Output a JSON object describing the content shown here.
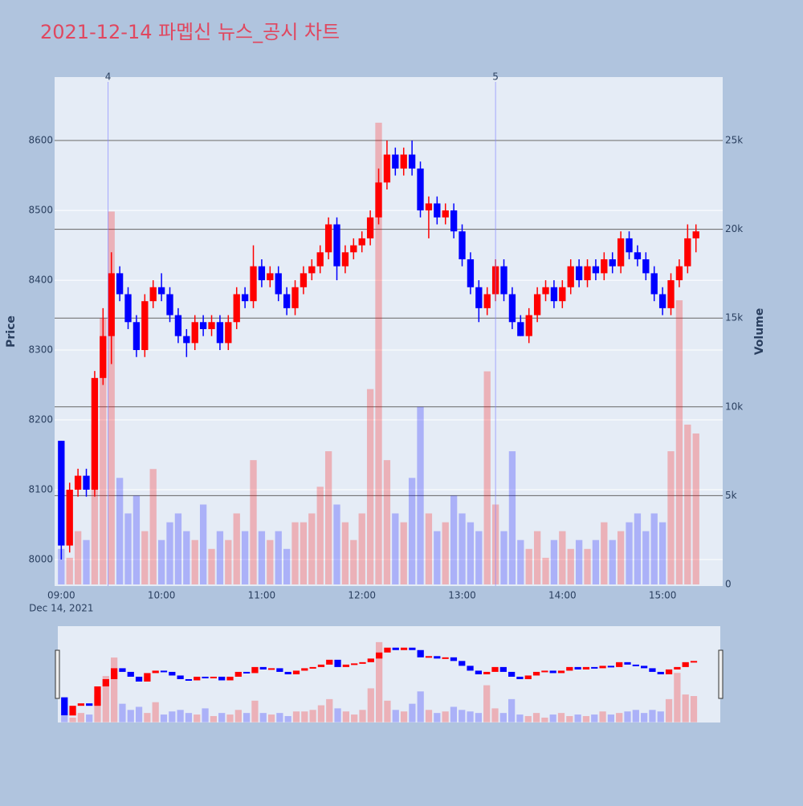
{
  "chart_data": {
    "type": "candlestick",
    "title": "2021-12-14 파멥신 뉴스_공시 차트",
    "x": [
      "09:00",
      "09:05",
      "09:10",
      "09:15",
      "09:20",
      "09:25",
      "09:30",
      "09:35",
      "09:40",
      "09:45",
      "09:50",
      "09:55",
      "10:00",
      "10:05",
      "10:10",
      "10:15",
      "10:20",
      "10:25",
      "10:30",
      "10:35",
      "10:40",
      "10:45",
      "10:50",
      "10:55",
      "11:00",
      "11:05",
      "11:10",
      "11:15",
      "11:20",
      "11:25",
      "11:30",
      "11:35",
      "11:40",
      "11:45",
      "11:50",
      "11:55",
      "12:00",
      "12:05",
      "12:10",
      "12:15",
      "12:20",
      "12:25",
      "12:30",
      "12:35",
      "12:40",
      "12:45",
      "12:50",
      "12:55",
      "13:00",
      "13:05",
      "13:10",
      "13:15",
      "13:20",
      "13:25",
      "13:30",
      "13:35",
      "13:40",
      "13:45",
      "13:50",
      "13:55",
      "14:00",
      "14:05",
      "14:10",
      "14:15",
      "14:20",
      "14:25",
      "14:30",
      "14:35",
      "14:40",
      "14:45",
      "14:50",
      "14:55",
      "15:00",
      "15:05",
      "15:10",
      "15:15",
      "15:20"
    ],
    "open": [
      8170,
      8020,
      8100,
      8120,
      8100,
      8260,
      8320,
      8410,
      8380,
      8340,
      8300,
      8370,
      8390,
      8380,
      8350,
      8320,
      8310,
      8340,
      8330,
      8340,
      8310,
      8340,
      8380,
      8370,
      8420,
      8400,
      8410,
      8380,
      8360,
      8390,
      8410,
      8420,
      8440,
      8480,
      8420,
      8440,
      8450,
      8460,
      8490,
      8540,
      8580,
      8560,
      8580,
      8560,
      8500,
      8510,
      8490,
      8500,
      8470,
      8430,
      8390,
      8360,
      8380,
      8420,
      8380,
      8340,
      8320,
      8350,
      8380,
      8390,
      8370,
      8390,
      8420,
      8400,
      8420,
      8410,
      8430,
      8420,
      8460,
      8440,
      8430,
      8410,
      8380,
      8360,
      8400,
      8420,
      8460
    ],
    "high": [
      8170,
      8110,
      8130,
      8130,
      8270,
      8360,
      8440,
      8420,
      8390,
      8350,
      8380,
      8400,
      8410,
      8390,
      8360,
      8330,
      8350,
      8350,
      8350,
      8350,
      8350,
      8390,
      8390,
      8450,
      8430,
      8420,
      8420,
      8390,
      8400,
      8420,
      8430,
      8450,
      8490,
      8490,
      8450,
      8460,
      8470,
      8500,
      8560,
      8600,
      8590,
      8590,
      8600,
      8570,
      8520,
      8520,
      8510,
      8510,
      8480,
      8440,
      8400,
      8390,
      8430,
      8430,
      8390,
      8350,
      8360,
      8390,
      8400,
      8400,
      8400,
      8430,
      8430,
      8430,
      8430,
      8440,
      8440,
      8470,
      8470,
      8450,
      8440,
      8420,
      8390,
      8410,
      8430,
      8480,
      8480
    ],
    "low": [
      8000,
      8010,
      8090,
      8090,
      8090,
      8250,
      8280,
      8370,
      8330,
      8290,
      8290,
      8360,
      8370,
      8340,
      8310,
      8290,
      8300,
      8320,
      8320,
      8300,
      8300,
      8330,
      8360,
      8360,
      8390,
      8390,
      8370,
      8350,
      8350,
      8380,
      8400,
      8410,
      8430,
      8400,
      8410,
      8430,
      8440,
      8450,
      8480,
      8530,
      8550,
      8550,
      8550,
      8490,
      8460,
      8480,
      8480,
      8460,
      8420,
      8380,
      8340,
      8350,
      8370,
      8370,
      8330,
      8320,
      8310,
      8340,
      8370,
      8360,
      8360,
      8380,
      8390,
      8390,
      8400,
      8400,
      8410,
      8410,
      8430,
      8420,
      8400,
      8370,
      8350,
      8350,
      8390,
      8410,
      8440
    ],
    "close": [
      8020,
      8100,
      8120,
      8100,
      8260,
      8320,
      8410,
      8380,
      8340,
      8300,
      8370,
      8390,
      8380,
      8350,
      8320,
      8310,
      8340,
      8330,
      8340,
      8310,
      8340,
      8380,
      8370,
      8420,
      8400,
      8410,
      8380,
      8360,
      8390,
      8410,
      8420,
      8440,
      8480,
      8420,
      8440,
      8450,
      8460,
      8490,
      8540,
      8580,
      8560,
      8580,
      8560,
      8500,
      8510,
      8490,
      8500,
      8470,
      8430,
      8390,
      8360,
      8380,
      8420,
      8380,
      8340,
      8320,
      8350,
      8380,
      8390,
      8370,
      8390,
      8420,
      8400,
      8420,
      8410,
      8430,
      8420,
      8460,
      8440,
      8430,
      8410,
      8380,
      8360,
      8400,
      8420,
      8460,
      8470
    ],
    "volume": [
      2000,
      1500,
      3000,
      2500,
      9000,
      15000,
      21000,
      6000,
      4000,
      5000,
      3000,
      6500,
      2500,
      3500,
      4000,
      3000,
      2500,
      4500,
      2000,
      3000,
      2500,
      4000,
      3000,
      7000,
      3000,
      2500,
      3000,
      2000,
      3500,
      3500,
      4000,
      5500,
      7500,
      4500,
      3500,
      2500,
      4000,
      11000,
      26000,
      7000,
      4000,
      3500,
      6000,
      10000,
      4000,
      3000,
      3500,
      5000,
      4000,
      3500,
      3000,
      12000,
      4500,
      3000,
      7500,
      2500,
      2000,
      3000,
      1500,
      2500,
      3000,
      2000,
      2500,
      2000,
      2500,
      3500,
      2500,
      3000,
      3500,
      4000,
      3000,
      4000,
      3500,
      7500,
      16000,
      9000,
      8500
    ],
    "increasing_color": "#ff0000",
    "decreasing_color": "#0000ff",
    "ylabel": "Price",
    "y2label": "Volume",
    "ylim": [
      7962,
      8691
    ],
    "yticks": [
      8000,
      8100,
      8200,
      8300,
      8400,
      8500,
      8600
    ],
    "y2lim": [
      -90,
      28570
    ],
    "y2ticks": [
      0,
      {
        "value": 5000,
        "label": "5k"
      },
      {
        "value": 10000,
        "label": "10k"
      },
      {
        "value": 15000,
        "label": "15k"
      },
      {
        "value": 20000,
        "label": "20k"
      },
      {
        "value": 25000,
        "label": "25k"
      }
    ],
    "xlim": [
      "08:56",
      "15:36"
    ],
    "xticks": [
      "09:00",
      "10:00",
      "11:00",
      "12:00",
      "13:00",
      "14:00",
      "15:00"
    ],
    "xtick_sublabel": "Dec 14, 2021",
    "annotations": [
      {
        "x": "09:28",
        "text": "4"
      },
      {
        "x": "13:20",
        "text": "5"
      }
    ]
  }
}
